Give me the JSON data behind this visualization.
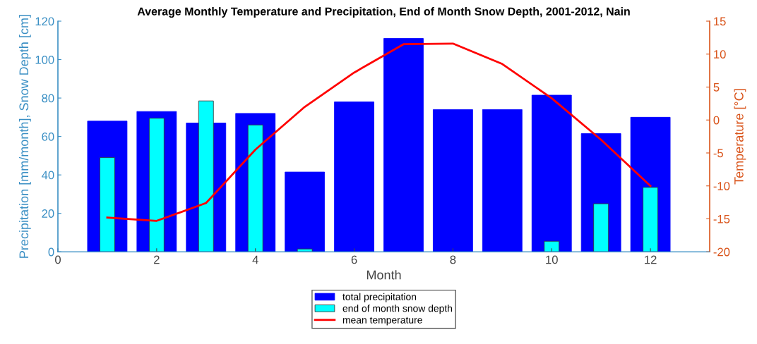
{
  "chart_data": {
    "type": "bar",
    "title": "Average Monthly Temperature and Precipitation, End of Month Snow Depth, 2001-2012, Nain",
    "xlabel": "Month",
    "ylabel": "Precipitation [mm/month], Snow Depth [cm]",
    "y2label": "Temperature [°C]",
    "x": [
      1,
      2,
      3,
      4,
      5,
      6,
      7,
      8,
      9,
      10,
      11,
      12
    ],
    "xlim": [
      0,
      13.2
    ],
    "xticks": [
      0,
      2,
      4,
      6,
      8,
      10,
      12
    ],
    "ylim": [
      0,
      120
    ],
    "yticks": [
      0,
      20,
      40,
      60,
      80,
      100,
      120
    ],
    "y2lim": [
      -20,
      15
    ],
    "y2ticks": [
      -20,
      -15,
      -10,
      -5,
      0,
      5,
      10,
      15
    ],
    "series": [
      {
        "name": "total precipitation",
        "color": "#0000ff",
        "values": [
          68,
          73,
          67,
          72,
          41.5,
          78,
          111,
          74,
          74,
          81.5,
          61.5,
          70
        ]
      },
      {
        "name": "end of month snow depth",
        "color": "#00ffff",
        "values": [
          49,
          69.5,
          78.5,
          66,
          1.5,
          null,
          null,
          null,
          null,
          5.5,
          25,
          33.5
        ]
      },
      {
        "name": "mean temperature",
        "type": "line",
        "axis": "y2",
        "color": "#ff0000",
        "values": [
          -14.8,
          -15.3,
          -12.6,
          -4.5,
          2,
          7.2,
          11.5,
          11.6,
          8.5,
          3.3,
          -3,
          -10
        ]
      }
    ],
    "grid": false,
    "legend": "bottom"
  }
}
